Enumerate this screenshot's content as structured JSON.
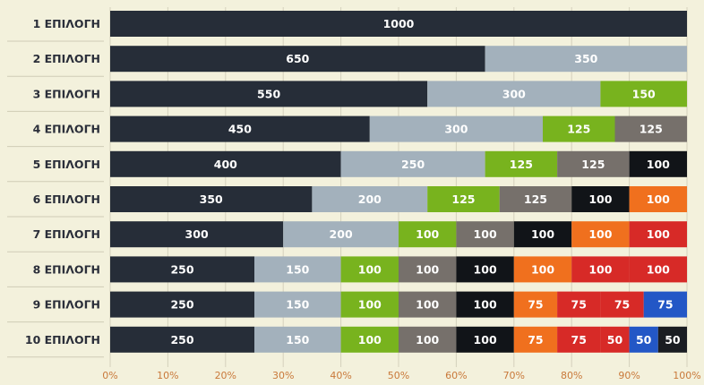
{
  "chart_data": {
    "type": "bar",
    "orientation": "horizontal",
    "stacked": true,
    "title": "",
    "xlabel": "",
    "ylabel": "",
    "xlim": [
      0,
      100
    ],
    "grid": true,
    "legend": "none",
    "x_ticks": [
      "0%",
      "10%",
      "20%",
      "30%",
      "40%",
      "50%",
      "60%",
      "70%",
      "80%",
      "90%",
      "100%"
    ],
    "categories": [
      "1 ΕΠΙΛΟΓΗ",
      "2 ΕΠΙΛΟΓΗ",
      "3 ΕΠΙΛΟΓΗ",
      "4 ΕΠΙΛΟΓΗ",
      "5 ΕΠΙΛΟΓΗ",
      "6 ΕΠΙΛΟΓΗ",
      "7 ΕΠΙΛΟΓΗ",
      "8 ΕΠΙΛΟΓΗ",
      "9 ΕΠΙΛΟΓΗ",
      "10 ΕΠΙΛΟΓΗ"
    ],
    "rows": [
      [
        1000
      ],
      [
        650,
        350
      ],
      [
        550,
        300,
        150
      ],
      [
        450,
        300,
        125,
        125
      ],
      [
        400,
        250,
        125,
        125,
        100
      ],
      [
        350,
        200,
        125,
        125,
        100,
        100
      ],
      [
        300,
        200,
        100,
        100,
        100,
        100,
        100
      ],
      [
        250,
        150,
        100,
        100,
        100,
        100,
        100,
        100
      ],
      [
        250,
        150,
        100,
        100,
        100,
        75,
        75,
        75,
        75
      ],
      [
        250,
        150,
        100,
        100,
        100,
        75,
        75,
        50,
        50,
        50
      ]
    ],
    "row_total": 1000,
    "segment_colors": [
      "#262d38",
      "#a3b1bc",
      "#78b31e",
      "#76706b",
      "#111418",
      "#f0701e",
      "#d72a27",
      "#d72a27",
      "#2357c6",
      "#1a1d22"
    ],
    "segment_text_colors": [
      "#ffffff",
      "#ffffff",
      "#ffffff",
      "#ffffff",
      "#ffffff",
      "#ffffff",
      "#ffffff",
      "#ffffff",
      "#ffffff",
      "#ffffff"
    ],
    "colors": {
      "background": "#f3f1dc",
      "label_text": "#2b2f3a",
      "tick_text": "#c9793a",
      "grid": "#d4d1bc"
    }
  }
}
